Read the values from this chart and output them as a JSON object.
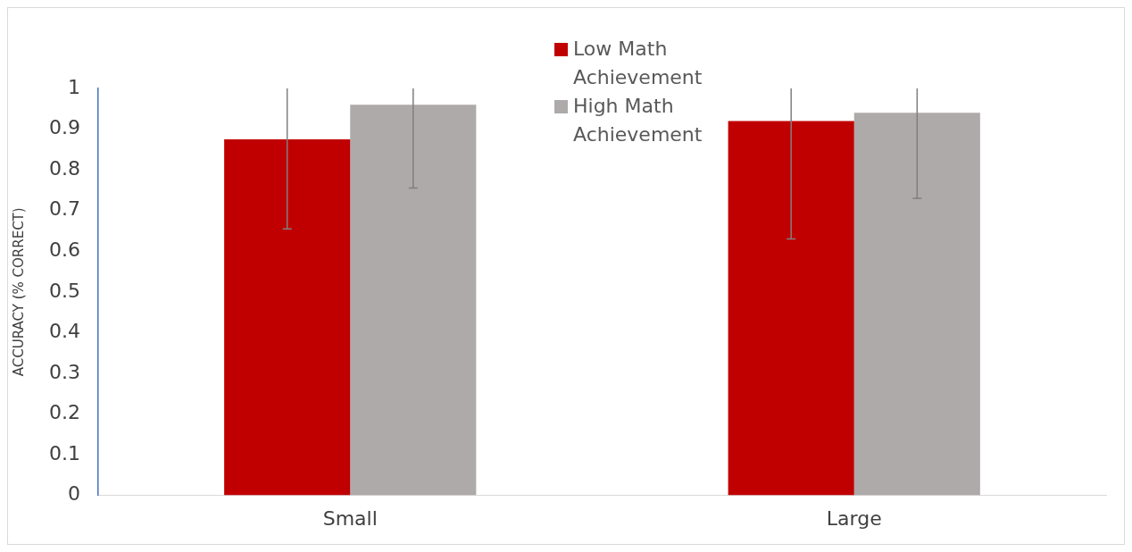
{
  "chart_data": {
    "type": "bar",
    "ylabel": "ACCURACY (% CORRECT)",
    "categories": [
      "Small",
      "Large"
    ],
    "series": [
      {
        "name": "Low Math Achievement",
        "color": "#c00000",
        "values": [
          0.875,
          0.92
        ],
        "errors": [
          [
            0.655,
            1
          ],
          [
            0.63,
            1
          ]
        ]
      },
      {
        "name": "High Math Achievement",
        "color": "#aeaaaa",
        "values": [
          0.96,
          0.94
        ],
        "errors": [
          [
            0.755,
            1
          ],
          [
            0.73,
            1
          ]
        ]
      }
    ],
    "ylim": [
      0,
      1
    ],
    "yticks": [
      0,
      0.1,
      0.2,
      0.3,
      0.4,
      0.5,
      0.6,
      0.7,
      0.8,
      0.9,
      1
    ],
    "grid": false,
    "legend": "top"
  }
}
